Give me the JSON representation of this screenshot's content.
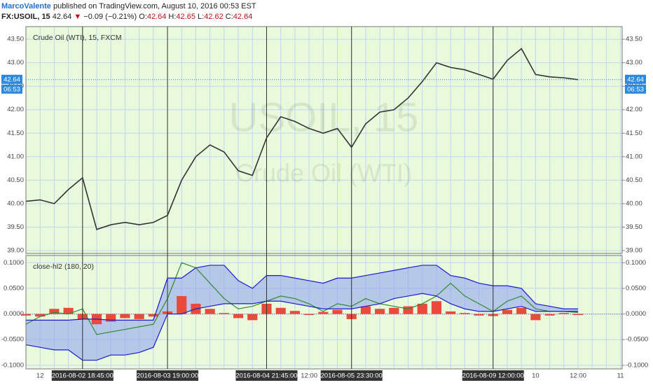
{
  "header": {
    "author": "MarcoValente",
    "published": "published on TradingView.com, August 10, 2016 00:53 EST",
    "symbol": "FX:USOIL, 15",
    "last": "42.64",
    "arrow": "▼",
    "change": "−0.09 (−0.21%)",
    "open_label": "O:",
    "open": "42.64",
    "high_label": "H:",
    "high": "42.65",
    "low_label": "L:",
    "low": "42.62",
    "close_label": "C:",
    "close": "42.64"
  },
  "chart_data": [
    {
      "type": "line",
      "title": "Crude Oil (WTI), 15, FXCM",
      "watermark": "USOIL, 15",
      "watermark_sub": "Crude Oil (WTI)",
      "categories": [
        null,
        "12",
        null,
        null,
        "2016-08-02 18:45:00",
        null,
        null,
        null,
        null,
        null,
        "2016-08-03 19:00:00",
        null,
        null,
        null,
        null,
        null,
        null,
        "2016-08-04 21:45:00",
        null,
        null,
        "12:00",
        null,
        null,
        "2016-08-05 23:30:00",
        null,
        null,
        null,
        null,
        null,
        null,
        null,
        null,
        null,
        "2016-08-09 12:00:00",
        null,
        null,
        "10",
        null,
        null,
        "12:00",
        null,
        null,
        "11"
      ],
      "values": [
        40.05,
        40.08,
        40.0,
        40.3,
        40.55,
        39.45,
        39.55,
        39.6,
        39.55,
        39.6,
        39.75,
        40.5,
        41.0,
        41.25,
        41.1,
        40.7,
        40.6,
        41.4,
        41.85,
        41.75,
        41.6,
        41.5,
        41.6,
        41.2,
        41.7,
        41.95,
        42.0,
        42.25,
        42.6,
        43.0,
        42.9,
        42.85,
        42.75,
        42.65,
        43.05,
        43.3,
        42.75,
        42.7,
        42.68,
        42.64,
        null,
        null,
        null
      ],
      "color": "#333333",
      "last_price": {
        "value": 42.64,
        "label": "42.64"
      },
      "countdown": "06:53",
      "ylim": [
        38.94,
        43.77
      ],
      "yticks": [
        {
          "value": 39,
          "label": "39.00"
        },
        {
          "value": 39.5,
          "label": "39.50"
        },
        {
          "value": 40,
          "label": "40.00"
        },
        {
          "value": 40.5,
          "label": "40.50"
        },
        {
          "value": 41,
          "label": "41.00"
        },
        {
          "value": 41.5,
          "label": "41.50"
        },
        {
          "value": 42,
          "label": "42.00"
        },
        {
          "value": 42.5,
          "label": "42.50"
        },
        {
          "value": 43,
          "label": "43.00"
        },
        {
          "value": 43.5,
          "label": "43.50"
        }
      ],
      "grid": true
    },
    {
      "type": "indicator",
      "title": "close-hl2 (180, 20)",
      "band_fill": "#8c9ef0",
      "series": [
        {
          "style": "histogram",
          "color": "#e84a3c",
          "values": [
            -0.003,
            -0.005,
            0.01,
            0.012,
            -0.01,
            -0.02,
            -0.015,
            -0.008,
            -0.01,
            -0.005,
            0.005,
            0.035,
            0.02,
            0.01,
            0.002,
            -0.008,
            -0.012,
            0.02,
            0.012,
            0.006,
            -0.002,
            0.004,
            0.008,
            -0.01,
            0.015,
            0.01,
            0.012,
            0.015,
            0.02,
            0.025,
            0.005,
            0.002,
            -0.003,
            -0.004,
            0.008,
            0.012,
            -0.012,
            -0.003,
            0.002,
            -0.002,
            null,
            null,
            null
          ]
        },
        {
          "style": "line",
          "color": "#2e8b2e",
          "values": [
            -0.02,
            -0.005,
            0.003,
            0.0,
            0.01,
            -0.04,
            -0.035,
            -0.03,
            -0.025,
            -0.02,
            0.03,
            0.1,
            0.09,
            0.06,
            0.03,
            0.01,
            0.015,
            0.025,
            0.035,
            0.03,
            0.02,
            0.005,
            0.02,
            0.015,
            0.03,
            0.02,
            0.015,
            0.01,
            0.02,
            0.035,
            0.06,
            0.035,
            0.02,
            0.005,
            0.025,
            0.035,
            0.01,
            0.005,
            0.005,
            0.003,
            null,
            null,
            null
          ]
        },
        {
          "style": "band-upper",
          "color": "#1a1ad0",
          "values": [
            -0.012,
            -0.012,
            -0.012,
            -0.012,
            -0.01,
            -0.01,
            -0.012,
            -0.012,
            -0.012,
            -0.012,
            0.07,
            0.07,
            0.09,
            0.095,
            0.095,
            0.065,
            0.05,
            0.075,
            0.075,
            0.07,
            0.065,
            0.06,
            0.07,
            0.07,
            0.075,
            0.08,
            0.085,
            0.09,
            0.095,
            0.095,
            0.075,
            0.07,
            0.06,
            0.055,
            0.055,
            0.05,
            0.02,
            0.015,
            0.01,
            0.01,
            null,
            null,
            null
          ]
        },
        {
          "style": "band-lower",
          "color": "#1a1ad0",
          "values": [
            -0.06,
            -0.065,
            -0.07,
            -0.07,
            -0.09,
            -0.09,
            -0.08,
            -0.08,
            -0.075,
            -0.065,
            0.0,
            0.0,
            0.01,
            0.015,
            0.02,
            0.02,
            0.02,
            0.025,
            0.025,
            0.02,
            0.015,
            0.01,
            0.01,
            0.01,
            0.015,
            0.02,
            0.03,
            0.035,
            0.04,
            0.035,
            0.02,
            0.01,
            0.005,
            0.005,
            0.01,
            0.015,
            0.005,
            0.005,
            0.005,
            0.005,
            null,
            null,
            null
          ]
        }
      ],
      "ylim": [
        -0.107,
        0.114
      ],
      "yticks": [
        {
          "value": -0.1,
          "label": "-0.1000"
        },
        {
          "value": -0.05,
          "label": "-0.0500"
        },
        {
          "value": 0,
          "label": "0.0000"
        },
        {
          "value": 0.05,
          "label": "0.0500"
        },
        {
          "value": 0.1,
          "label": "0.1000"
        }
      ],
      "grid": true
    }
  ]
}
